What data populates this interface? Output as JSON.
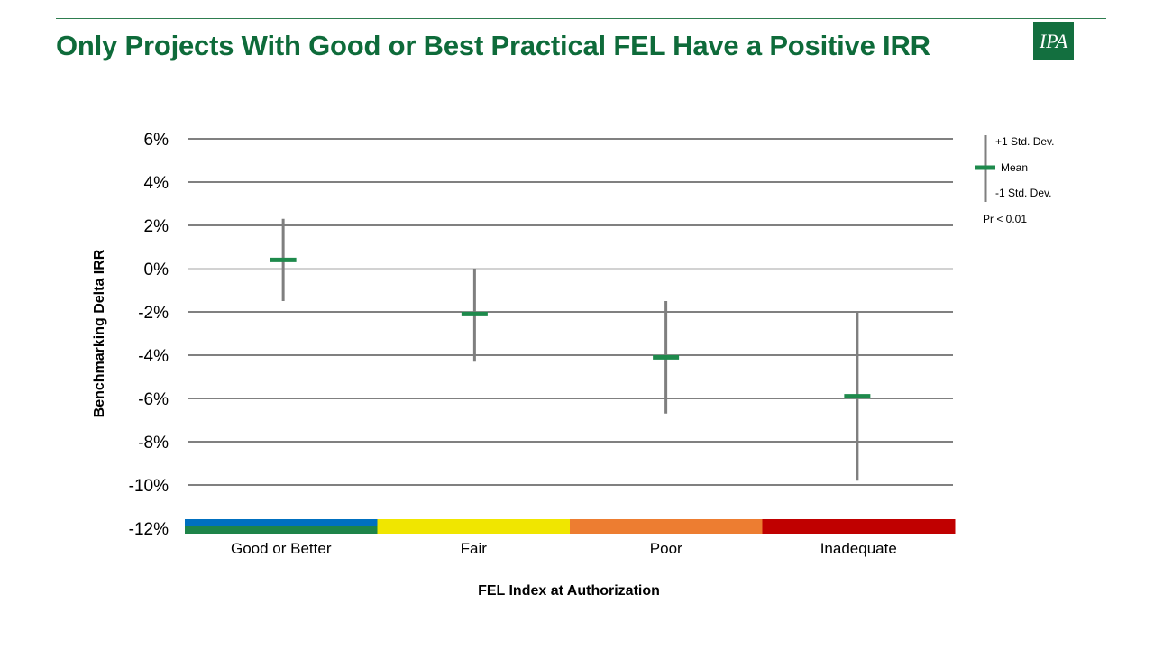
{
  "slide": {
    "title": "Only Projects With Good or Best Practical FEL Have a Positive IRR",
    "logo_text": "IPA"
  },
  "chart_data": {
    "type": "errorbar",
    "title": "",
    "xlabel": "FEL Index at Authorization",
    "ylabel": "Benchmarking Delta IRR",
    "ylim": [
      -12,
      6
    ],
    "yticks": [
      6,
      4,
      2,
      0,
      -2,
      -4,
      -6,
      -8,
      -10,
      -12
    ],
    "ytick_labels": [
      "6%",
      "4%",
      "2%",
      "0%",
      "-2%",
      "-4%",
      "-6%",
      "-8%",
      "-10%",
      "-12%"
    ],
    "grid": true,
    "categories": [
      "Good or Better",
      "Fair",
      "Poor",
      "Inadequate"
    ],
    "category_colors": [
      [
        "#0070c0",
        "#1e8449"
      ],
      [
        "#f0e600"
      ],
      [
        "#ed7d31"
      ],
      [
        "#c00000"
      ]
    ],
    "mean": [
      0.4,
      -2.1,
      -4.1,
      -5.9
    ],
    "plus_1sd": [
      2.3,
      0.0,
      -1.5,
      -2.0
    ],
    "minus_1sd": [
      -1.5,
      -4.3,
      -6.7,
      -9.8
    ],
    "mean_color": "#1e8a4c",
    "whisker_color": "#7f7f7f",
    "legend": {
      "position": "right",
      "plus_label": "+1 Std. Dev.",
      "mean_label": "Mean",
      "minus_label": "-1 Std. Dev.",
      "note": "Pr < 0.01"
    }
  }
}
